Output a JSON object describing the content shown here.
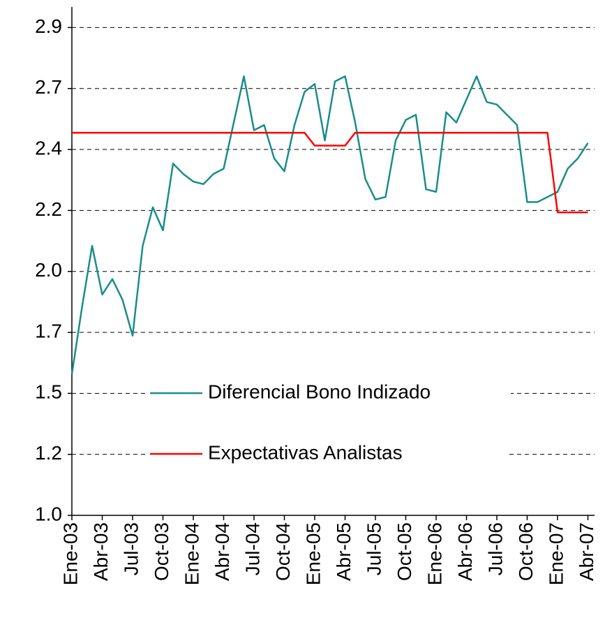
{
  "chart_data": {
    "type": "line",
    "categories": [
      "Ene-03",
      null,
      null,
      "Abr-03",
      null,
      null,
      "Jul-03",
      null,
      null,
      "Oct-03",
      null,
      null,
      "Ene-04",
      null,
      null,
      "Abr-04",
      null,
      null,
      "Jul-04",
      null,
      null,
      "Oct-04",
      null,
      null,
      "Ene-05",
      null,
      null,
      "Abr-05",
      null,
      null,
      "Jul-05",
      null,
      null,
      "Oct-05",
      null,
      null,
      "Ene-06",
      null,
      null,
      "Abr-06",
      null,
      null,
      "Jul-06",
      null,
      null,
      "Oct-06",
      null,
      null,
      "Ene-07",
      null,
      null,
      "Abr-07"
    ],
    "series": [
      {
        "name": "Diferencial Bono Indizado",
        "color": "#1a8c8c",
        "values": [
          1.55,
          1.81,
          2.05,
          1.86,
          1.92,
          1.84,
          1.7,
          2.05,
          2.2,
          2.11,
          2.37,
          2.33,
          2.3,
          2.29,
          2.33,
          2.35,
          2.53,
          2.71,
          2.5,
          2.52,
          2.39,
          2.34,
          2.52,
          2.65,
          2.68,
          2.46,
          2.69,
          2.71,
          2.53,
          2.31,
          2.23,
          2.24,
          2.46,
          2.54,
          2.56,
          2.27,
          2.26,
          2.57,
          2.53,
          2.62,
          2.71,
          2.61,
          2.6,
          2.56,
          2.52,
          2.22,
          2.22,
          2.24,
          2.26,
          2.35,
          2.39,
          2.45
        ]
      },
      {
        "name": "Expectativas Analistas",
        "color": "#ff0000",
        "values": [
          2.49,
          2.49,
          2.49,
          2.49,
          2.49,
          2.49,
          2.49,
          2.49,
          2.49,
          2.49,
          2.49,
          2.49,
          2.49,
          2.49,
          2.49,
          2.49,
          2.49,
          2.49,
          2.49,
          2.49,
          2.49,
          2.49,
          2.49,
          2.49,
          2.44,
          2.44,
          2.44,
          2.44,
          2.49,
          2.49,
          2.49,
          2.49,
          2.49,
          2.49,
          2.49,
          2.49,
          2.49,
          2.49,
          2.49,
          2.49,
          2.49,
          2.49,
          2.49,
          2.49,
          2.49,
          2.49,
          2.49,
          2.49,
          2.18,
          2.18,
          2.18,
          2.18
        ]
      }
    ],
    "ylim": [
      1.0,
      2.98
    ],
    "yticks": [
      {
        "value": 1.0,
        "label": "1.0"
      },
      {
        "value": 1.2375,
        "label": "1.2"
      },
      {
        "value": 1.475,
        "label": "1.5"
      },
      {
        "value": 1.7125,
        "label": "1.7"
      },
      {
        "value": 1.95,
        "label": "2.0"
      },
      {
        "value": 2.1875,
        "label": "2.2"
      },
      {
        "value": 2.425,
        "label": "2.4"
      },
      {
        "value": 2.6625,
        "label": "2.7"
      },
      {
        "value": 2.9,
        "label": "2.9"
      }
    ],
    "grid": true,
    "legend": "lower center"
  }
}
